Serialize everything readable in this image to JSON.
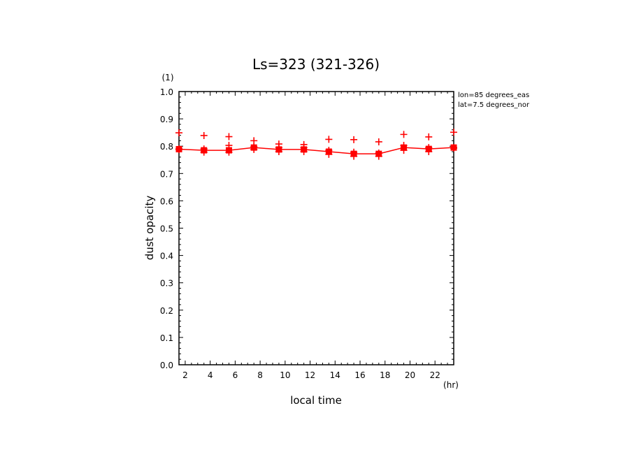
{
  "chart_data": {
    "type": "line",
    "title": "Ls=323 (321-326)",
    "xlabel": "local time",
    "ylabel": "dust opacity",
    "x_unit": "(hr)",
    "y_unit": "(1)",
    "xlim": [
      1.5,
      23.5
    ],
    "ylim": [
      0.0,
      1.0
    ],
    "x_ticks": [
      2,
      4,
      6,
      8,
      10,
      12,
      14,
      16,
      18,
      20,
      22
    ],
    "x_tick_labels": [
      "2",
      "4",
      "6",
      "8",
      "10",
      "12",
      "14",
      "16",
      "18",
      "20",
      "22"
    ],
    "y_ticks": [
      0.0,
      0.1,
      0.2,
      0.3,
      0.4,
      0.5,
      0.6,
      0.7,
      0.8,
      0.9,
      1.0
    ],
    "y_tick_labels": [
      "0.0",
      "0.1",
      "0.2",
      "0.3",
      "0.4",
      "0.5",
      "0.6",
      "0.7",
      "0.8",
      "0.9",
      "1.0"
    ],
    "annotations": [
      "lon=85 degrees_eas",
      "lat=7.5 degrees_nor"
    ],
    "color": "#ff0000",
    "grid": false,
    "series": [
      {
        "style": "line-square",
        "x": [
          1.5,
          3.5,
          5.5,
          7.5,
          9.5,
          11.5,
          13.5,
          15.5,
          17.5,
          19.5,
          21.5,
          23.5
        ],
        "values": [
          0.789,
          0.785,
          0.785,
          0.795,
          0.788,
          0.788,
          0.78,
          0.772,
          0.772,
          0.795,
          0.79,
          0.795
        ]
      },
      {
        "style": "plus",
        "x": [
          1.5,
          3.5,
          5.5,
          7.5,
          9.5,
          11.5,
          13.5,
          15.5,
          17.5,
          19.5,
          21.5,
          23.5
        ],
        "values": [
          0.849,
          0.839,
          0.835,
          0.82,
          0.808,
          0.806,
          0.825,
          0.824,
          0.816,
          0.843,
          0.834,
          0.851
        ]
      },
      {
        "style": "plus",
        "x": [
          1.5,
          3.5,
          5.5,
          7.5,
          9.5,
          11.5,
          13.5,
          15.5,
          17.5,
          19.5,
          21.5,
          23.5
        ],
        "values": [
          0.79,
          0.79,
          0.803,
          0.798,
          0.795,
          0.795,
          0.785,
          0.778,
          0.775,
          0.803,
          0.795,
          0.795
        ]
      },
      {
        "style": "plus",
        "x": [
          1.5,
          3.5,
          5.5,
          7.5,
          9.5,
          11.5,
          13.5,
          15.5,
          17.5,
          19.5,
          21.5,
          23.5
        ],
        "values": [
          0.788,
          0.778,
          0.778,
          0.788,
          0.78,
          0.78,
          0.77,
          0.763,
          0.763,
          0.785,
          0.78,
          0.793
        ]
      }
    ]
  }
}
